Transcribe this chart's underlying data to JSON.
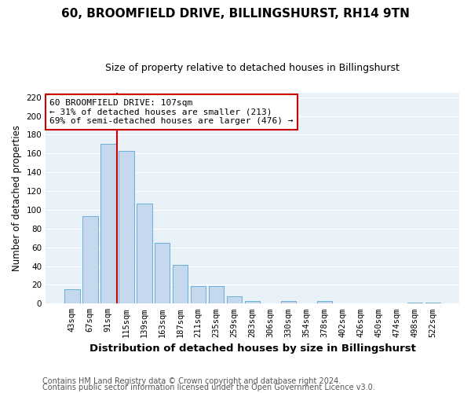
{
  "title": "60, BROOMFIELD DRIVE, BILLINGSHURST, RH14 9TN",
  "subtitle": "Size of property relative to detached houses in Billingshurst",
  "xlabel": "Distribution of detached houses by size in Billingshurst",
  "ylabel": "Number of detached properties",
  "categories": [
    "43sqm",
    "67sqm",
    "91sqm",
    "115sqm",
    "139sqm",
    "163sqm",
    "187sqm",
    "211sqm",
    "235sqm",
    "259sqm",
    "283sqm",
    "306sqm",
    "330sqm",
    "354sqm",
    "378sqm",
    "402sqm",
    "426sqm",
    "450sqm",
    "474sqm",
    "498sqm",
    "522sqm"
  ],
  "values": [
    15,
    93,
    170,
    163,
    107,
    65,
    41,
    19,
    19,
    8,
    3,
    0,
    3,
    0,
    3,
    0,
    0,
    0,
    0,
    1,
    1
  ],
  "bar_color": "#c5d8ed",
  "bar_edge_color": "#6aaed6",
  "background_color": "#e8f0f8",
  "vline_color": "#cc0000",
  "annotation_line1": "60 BROOMFIELD DRIVE: 107sqm",
  "annotation_line2": "← 31% of detached houses are smaller (213)",
  "annotation_line3": "69% of semi-detached houses are larger (476) →",
  "annotation_box_color": "#ffffff",
  "annotation_box_edge": "#cc0000",
  "ylim": [
    0,
    225
  ],
  "yticks": [
    0,
    20,
    40,
    60,
    80,
    100,
    120,
    140,
    160,
    180,
    200,
    220
  ],
  "footer1": "Contains HM Land Registry data © Crown copyright and database right 2024.",
  "footer2": "Contains public sector information licensed under the Open Government Licence v3.0.",
  "title_fontsize": 11,
  "subtitle_fontsize": 9,
  "xlabel_fontsize": 9.5,
  "ylabel_fontsize": 8.5,
  "tick_fontsize": 7.5,
  "annotation_fontsize": 8,
  "footer_fontsize": 7
}
